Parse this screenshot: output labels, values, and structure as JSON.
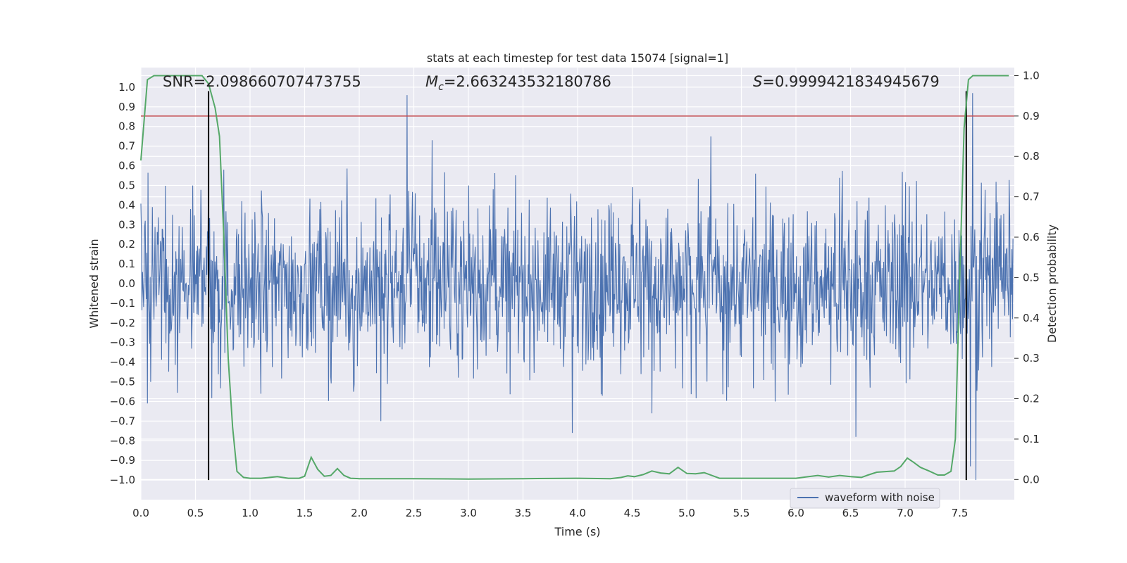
{
  "chart_data": {
    "type": "line",
    "title": "stats at each timestep for test data 15074 [signal=1]",
    "xlabel": "Time (s)",
    "ylabel": "Whitened strain",
    "y2label": "Detection probability",
    "xlim": [
      0.0,
      8.0
    ],
    "ylim": [
      -1.1,
      1.1
    ],
    "y2lim": [
      -0.05,
      1.02
    ],
    "xticks": [
      0.0,
      0.5,
      1.0,
      1.5,
      2.0,
      2.5,
      3.0,
      3.5,
      4.0,
      4.5,
      5.0,
      5.5,
      6.0,
      6.5,
      7.0,
      7.5
    ],
    "xtick_labels": [
      "0.0",
      "0.5",
      "1.0",
      "1.5",
      "2.0",
      "2.5",
      "3.0",
      "3.5",
      "4.0",
      "4.5",
      "5.0",
      "5.5",
      "6.0",
      "6.5",
      "7.0",
      "7.5"
    ],
    "yticks": [
      -1.0,
      -0.9,
      -0.8,
      -0.7,
      -0.6,
      -0.5,
      -0.4,
      -0.3,
      -0.2,
      -0.1,
      0.0,
      0.1,
      0.2,
      0.3,
      0.4,
      0.5,
      0.6,
      0.7,
      0.8,
      0.9,
      1.0
    ],
    "ytick_labels": [
      "−1.0",
      "−0.9",
      "−0.8",
      "−0.7",
      "−0.6",
      "−0.5",
      "−0.4",
      "−0.3",
      "−0.2",
      "−0.1",
      "0.0",
      "0.1",
      "0.2",
      "0.3",
      "0.4",
      "0.5",
      "0.6",
      "0.7",
      "0.8",
      "0.9",
      "1.0"
    ],
    "y2ticks": [
      0.0,
      0.1,
      0.2,
      0.3,
      0.4,
      0.5,
      0.6,
      0.7,
      0.8,
      0.9,
      1.0
    ],
    "y2tick_labels": [
      "0.0",
      "0.1",
      "0.2",
      "0.3",
      "0.4",
      "0.5",
      "0.6",
      "0.7",
      "0.8",
      "0.9",
      "1.0"
    ],
    "annotations": [
      {
        "name": "snr-annotation",
        "text": "SNR=2.098660707473755"
      },
      {
        "name": "chirp-mass-annotation",
        "text": "=2.663243532180786",
        "symbol": "M",
        "subscript": "c"
      },
      {
        "name": "score-annotation",
        "text": "=0.9999421834945679",
        "symbol": "S"
      }
    ],
    "legend": {
      "label": "waveform with noise",
      "placement": "lower-right",
      "color": "#4c72b0"
    },
    "vertical_lines": [
      0.62,
      7.56
    ],
    "vertical_line_range": [
      -1.0,
      0.98
    ],
    "threshold_y2": 0.9,
    "series": [
      {
        "name": "waveform with noise",
        "color": "#4c72b0",
        "axis": "left",
        "n_samples": 1600,
        "approx_band": [
          -0.35,
          0.35
        ],
        "notable_peaks": [
          {
            "x": 2.44,
            "y": 0.96
          },
          {
            "x": 2.67,
            "y": 0.73
          },
          {
            "x": 5.22,
            "y": 0.75
          },
          {
            "x": 7.62,
            "y": 0.97
          },
          {
            "x": 0.62,
            "y": 0.55
          },
          {
            "x": 0.76,
            "y": 0.58
          },
          {
            "x": 3.95,
            "y": -0.76
          },
          {
            "x": 2.2,
            "y": -0.7
          },
          {
            "x": 6.55,
            "y": -0.78
          },
          {
            "x": 7.65,
            "y": -1.0
          },
          {
            "x": 7.6,
            "y": -0.93
          },
          {
            "x": 4.68,
            "y": -0.66
          },
          {
            "x": 0.06,
            "y": -0.61
          }
        ]
      },
      {
        "name": "detection probability",
        "color": "#55a868",
        "axis": "right",
        "x": [
          0.0,
          0.06,
          0.12,
          0.2,
          0.3,
          0.4,
          0.5,
          0.56,
          0.62,
          0.68,
          0.72,
          0.76,
          0.8,
          0.84,
          0.88,
          0.94,
          1.0,
          1.1,
          1.25,
          1.35,
          1.45,
          1.5,
          1.56,
          1.62,
          1.68,
          1.74,
          1.8,
          1.86,
          1.92,
          2.0,
          2.2,
          2.5,
          3.0,
          3.5,
          4.0,
          4.3,
          4.4,
          4.46,
          4.52,
          4.6,
          4.68,
          4.76,
          4.84,
          4.92,
          5.0,
          5.08,
          5.16,
          5.3,
          5.5,
          6.0,
          6.2,
          6.3,
          6.4,
          6.5,
          6.6,
          6.66,
          6.74,
          6.9,
          6.96,
          7.02,
          7.08,
          7.14,
          7.22,
          7.3,
          7.36,
          7.42,
          7.46,
          7.5,
          7.54,
          7.58,
          7.62,
          7.66,
          7.7,
          7.8,
          7.95
        ],
        "y": [
          0.79,
          0.99,
          1.0,
          1.0,
          1.0,
          1.0,
          1.0,
          1.0,
          0.98,
          0.92,
          0.85,
          0.6,
          0.3,
          0.13,
          0.02,
          0.005,
          0.003,
          0.003,
          0.007,
          0.003,
          0.003,
          0.008,
          0.055,
          0.025,
          0.008,
          0.01,
          0.027,
          0.01,
          0.003,
          0.002,
          0.002,
          0.002,
          0.001,
          0.002,
          0.003,
          0.002,
          0.005,
          0.009,
          0.007,
          0.012,
          0.021,
          0.016,
          0.014,
          0.03,
          0.015,
          0.014,
          0.017,
          0.003,
          0.003,
          0.003,
          0.01,
          0.006,
          0.01,
          0.007,
          0.005,
          0.011,
          0.018,
          0.021,
          0.032,
          0.053,
          0.042,
          0.03,
          0.021,
          0.011,
          0.011,
          0.02,
          0.1,
          0.5,
          0.87,
          0.99,
          1.0,
          1.0,
          1.0,
          1.0,
          1.0
        ]
      }
    ]
  }
}
